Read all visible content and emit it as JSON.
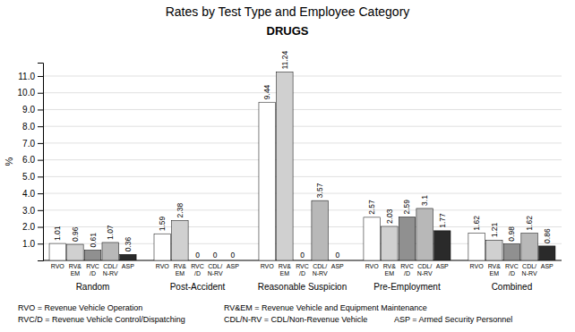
{
  "chart_data": {
    "type": "bar",
    "title": "Rates by Test Type and Employee Category",
    "subtitle": "DRUGS",
    "y_label": "%",
    "categories": [
      "Random",
      "Post-Accident",
      "Reasonable Suspicion",
      "Pre-Employment",
      "Combined"
    ],
    "series": [
      {
        "name": "RVO",
        "color": "#ffffff",
        "values": [
          1.01,
          1.59,
          9.44,
          2.57,
          1.62
        ]
      },
      {
        "name": "RV&\nEM",
        "color": "#d0d0d0",
        "values": [
          0.96,
          2.38,
          11.24,
          2.03,
          1.21
        ]
      },
      {
        "name": "RVC\n/D",
        "color": "#909090",
        "values": [
          0.61,
          0,
          0,
          2.59,
          0.98
        ]
      },
      {
        "name": "CDL/\nN-RV",
        "color": "#b8b8b8",
        "values": [
          1.07,
          0,
          3.57,
          3.1,
          1.62
        ]
      },
      {
        "name": "ASP",
        "color": "#2a2a2a",
        "values": [
          0.36,
          0,
          0,
          1.77,
          0.86
        ]
      }
    ],
    "ylim": [
      0,
      11.8
    ],
    "yticks": [
      {
        "value": 1,
        "label": "1.0"
      },
      {
        "value": 2,
        "label": "2.0"
      },
      {
        "value": 3,
        "label": "3.0"
      },
      {
        "value": 4,
        "label": "4.0"
      },
      {
        "value": 5,
        "label": "5.0"
      },
      {
        "value": 6,
        "label": "6.0"
      },
      {
        "value": 7,
        "label": "7.0"
      },
      {
        "value": 8,
        "label": "8.0"
      },
      {
        "value": 9,
        "label": "9.0"
      },
      {
        "value": 10,
        "label": "10.0"
      },
      {
        "value": 11,
        "label": "11.0"
      }
    ],
    "grid": true,
    "data_labels": true,
    "annotations": [
      "RVO = Revenue Vehicle Operation",
      "RV&EM = Revenue Vehicle and Equipment Maintenance",
      "RVC/D = Revenue Vehicle Control/Dispatching",
      "CDL/N-RV = CDL/Non-Revenue Vehicle",
      "ASP = Armed Security Personnel"
    ]
  }
}
